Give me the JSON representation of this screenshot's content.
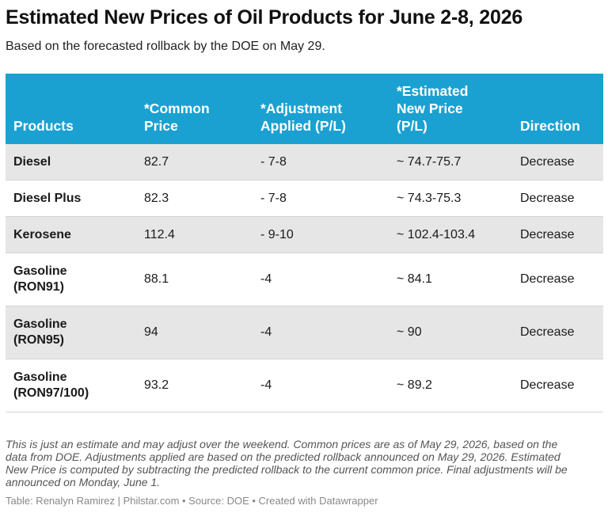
{
  "title": "Estimated New Prices of Oil Products for June 2-8, 2026",
  "subtitle": "Based on the forecasted rollback by the DOE on May 29.",
  "chart_data": {
    "type": "table",
    "columns": [
      [
        "Products"
      ],
      [
        "*Common",
        "Price"
      ],
      [
        "*Adjustment",
        "Applied (P/L)"
      ],
      [
        "*Estimated",
        "New Price",
        "(P/L)"
      ],
      [
        "Direction"
      ]
    ],
    "rows": [
      {
        "product": [
          "Diesel"
        ],
        "common_price": "82.7",
        "adjustment": "- 7-8",
        "new_price": "~ 74.7-75.7",
        "direction": "Decrease"
      },
      {
        "product": [
          "Diesel Plus"
        ],
        "common_price": "82.3",
        "adjustment": "- 7-8",
        "new_price": "~ 74.3-75.3",
        "direction": "Decrease"
      },
      {
        "product": [
          "Kerosene"
        ],
        "common_price": "112.4",
        "adjustment": "- 9-10",
        "new_price": "~ 102.4-103.4",
        "direction": "Decrease"
      },
      {
        "product": [
          "Gasoline",
          "(RON91)"
        ],
        "common_price": "88.1",
        "adjustment": "-4",
        "new_price": "~ 84.1",
        "direction": "Decrease"
      },
      {
        "product": [
          "Gasoline",
          "(RON95)"
        ],
        "common_price": "94",
        "adjustment": "-4",
        "new_price": "~ 90",
        "direction": "Decrease"
      },
      {
        "product": [
          "Gasoline",
          "(RON97/100)"
        ],
        "common_price": "93.2",
        "adjustment": "-4",
        "new_price": "~ 89.2",
        "direction": "Decrease"
      }
    ]
  },
  "notes": [
    "This is just an estimate and may adjust over the weekend. Common prices are as of May 29, 2026, based on the",
    "data from DOE. Adjustments applied are based on the predicted rollback announced on May 29, 2026. Estimated",
    "New Price is computed by subtracting the predicted rollback to the current common price. Final adjustments will be",
    "announced on Monday, June 1."
  ],
  "credit": "Table: Renalyn Ramirez | Philstar.com • Source: DOE • Created with Datawrapper",
  "colors": {
    "header_bg": "#1ba1d1",
    "header_text": "#ffffff",
    "stripe_bg": "#e6e6e6"
  }
}
